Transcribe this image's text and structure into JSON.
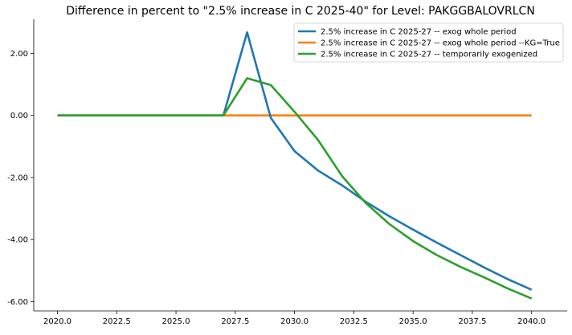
{
  "chart_data": {
    "type": "line",
    "title": "Difference in percent to \"2.5% increase in C 2025-40\" for Level: PAKGGBALOVRLCN",
    "xlabel": "",
    "ylabel": "",
    "xlim": [
      2019.0,
      2041.5
    ],
    "ylim": [
      -6.3,
      3.1
    ],
    "x_ticks": [
      2020.0,
      2022.5,
      2025.0,
      2027.5,
      2030.0,
      2032.5,
      2035.0,
      2037.5,
      2040.0
    ],
    "x_tick_labels": [
      "2020.0",
      "2022.5",
      "2025.0",
      "2027.5",
      "2030.0",
      "2032.5",
      "2035.0",
      "2037.5",
      "2040.0"
    ],
    "y_ticks": [
      2.0,
      0.0,
      -2.0,
      -4.0,
      -6.0
    ],
    "y_tick_labels": [
      "2.00",
      "0.00",
      "-2.00",
      "-4.00",
      "-6.00"
    ],
    "grid": false,
    "legend_position": "top-right",
    "x": [
      2020,
      2021,
      2022,
      2023,
      2024,
      2025,
      2026,
      2027,
      2028,
      2029,
      2030,
      2031,
      2032,
      2033,
      2034,
      2035,
      2036,
      2037,
      2038,
      2039,
      2040
    ],
    "series": [
      {
        "name": "2.5% increase in C 2025-27 -- exog whole period",
        "color": "#1f77b4",
        "values": [
          0,
          0,
          0,
          0,
          0,
          0,
          0,
          0,
          2.68,
          -0.08,
          -1.15,
          -1.78,
          -2.25,
          -2.78,
          -3.25,
          -3.68,
          -4.1,
          -4.5,
          -4.9,
          -5.28,
          -5.62
        ]
      },
      {
        "name": "2.5% increase in C 2025-27 -- exog whole period --KG=True",
        "color": "#ff7f0e",
        "values": [
          0,
          0,
          0,
          0,
          0,
          0,
          0,
          0,
          0,
          0,
          0,
          0,
          0,
          0,
          0,
          0,
          0,
          0,
          0,
          0,
          0
        ]
      },
      {
        "name": "2.5% increase in C 2025-27 -- temporarily exogenized",
        "color": "#2ca02c",
        "values": [
          0,
          0,
          0,
          0,
          0,
          0,
          0,
          0,
          1.2,
          0.98,
          0.12,
          -0.8,
          -1.95,
          -2.82,
          -3.5,
          -4.05,
          -4.5,
          -4.88,
          -5.22,
          -5.58,
          -5.9
        ]
      }
    ]
  }
}
